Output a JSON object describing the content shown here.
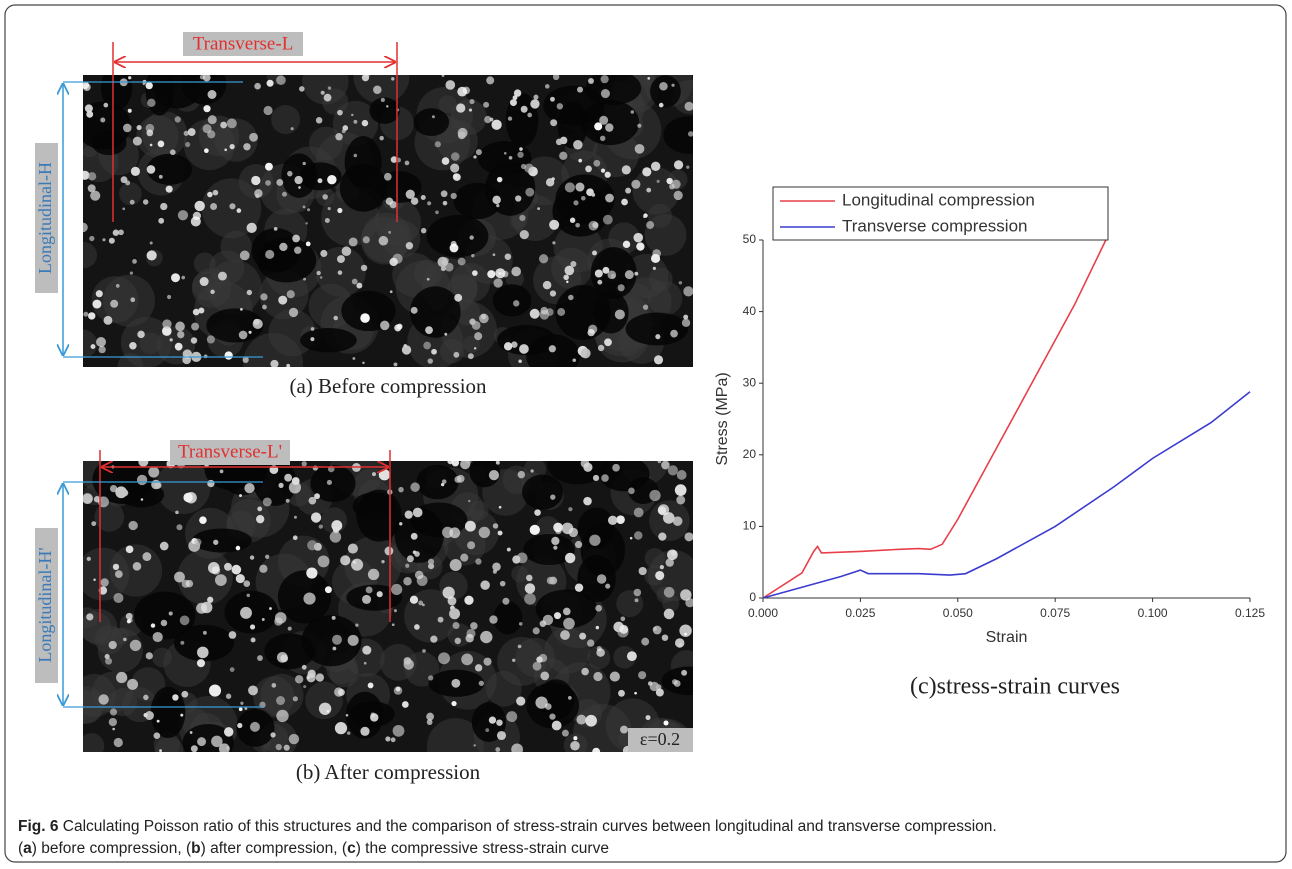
{
  "panel_a": {
    "caption": "(a) Before compression",
    "transverse_label": "Transverse-L",
    "longitudinal_label": "Longitudinal-H"
  },
  "panel_b": {
    "caption": "(b) After compression",
    "transverse_label": "Transverse-L'",
    "longitudinal_label": "Longitudinal-H'",
    "strain_label": "ε=0.2"
  },
  "chart_data": {
    "type": "line",
    "subtitle": "(c)stress-strain curves",
    "xlabel": "Strain",
    "ylabel": "Stress (MPa)",
    "xlim": [
      0,
      0.125
    ],
    "ylim": [
      0,
      50
    ],
    "xticks": [
      {
        "value": 0,
        "label": "0.000"
      },
      {
        "value": 0.025,
        "label": "0.025"
      },
      {
        "value": 0.05,
        "label": "0.050"
      },
      {
        "value": 0.075,
        "label": "0.075"
      },
      {
        "value": 0.1,
        "label": "0.100"
      },
      {
        "value": 0.125,
        "label": "0.125"
      }
    ],
    "yticks": [
      0,
      10,
      20,
      30,
      40,
      50
    ],
    "legend": "top-left",
    "series": [
      {
        "name": "Longitudinal compression",
        "color": "#e8404a",
        "x": [
          0,
          0.01,
          0.013,
          0.014,
          0.015,
          0.025,
          0.035,
          0.04,
          0.043,
          0.046,
          0.05,
          0.06,
          0.07,
          0.08,
          0.088
        ],
        "values": [
          0,
          3.5,
          6.5,
          7.2,
          6.3,
          6.5,
          6.8,
          6.9,
          6.8,
          7.5,
          11,
          21,
          31,
          41,
          50
        ]
      },
      {
        "name": "Transverse compression",
        "color": "#3b3bd0",
        "x": [
          0,
          0.01,
          0.02,
          0.025,
          0.027,
          0.04,
          0.048,
          0.052,
          0.06,
          0.075,
          0.09,
          0.1,
          0.115,
          0.125
        ],
        "values": [
          0,
          1.5,
          3,
          3.9,
          3.4,
          3.4,
          3.2,
          3.4,
          5.5,
          10,
          15.5,
          19.5,
          24.5,
          28.8
        ]
      }
    ]
  },
  "caption": {
    "label": "Fig. 6",
    "text": " Calculating Poisson ratio of this structures and the comparison of stress-strain curves between longitudinal and transverse compression.",
    "segments": [
      "(",
      "a",
      ") before compression, (",
      "b",
      ") after compression, (",
      "c",
      ") the compressive stress-strain curve"
    ]
  }
}
